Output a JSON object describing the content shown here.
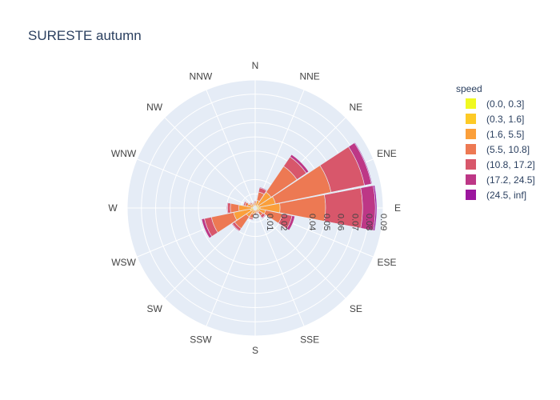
{
  "chart_data": {
    "type": "barpolar",
    "title": "SURESTE autumn",
    "legend_title": "speed",
    "legend_position": "top-right",
    "radial_range": [
      0,
      0.09
    ],
    "radial_ticks": [
      "0",
      "0.01",
      "0.02",
      "0.04",
      "0.05",
      "0.06",
      "0.07",
      "0.08",
      "0.09"
    ],
    "radial_tick_values": [
      0,
      0.01,
      0.02,
      0.04,
      0.05,
      0.06,
      0.07,
      0.08,
      0.09
    ],
    "directions": [
      "N",
      "NNE",
      "NE",
      "ENE",
      "E",
      "ESE",
      "SE",
      "SSE",
      "S",
      "SSW",
      "SW",
      "WSW",
      "W",
      "WNW",
      "NW",
      "NNW"
    ],
    "series": [
      {
        "name": "(0.0, 0.3]",
        "color": "#f0f921",
        "values": [
          0.0005,
          0.0005,
          0.0005,
          0.0005,
          0.0005,
          0.0005,
          0.0005,
          0.0005,
          0.0005,
          0.0005,
          0.0005,
          0.0005,
          0.0005,
          0.0005,
          0.0005,
          0.0005
        ]
      },
      {
        "name": "(0.3, 1.6]",
        "color": "#fdca26",
        "values": [
          0.001,
          0.001,
          0.002,
          0.002,
          0.003,
          0.002,
          0.001,
          0.001,
          0.001,
          0.001,
          0.001,
          0.003,
          0.002,
          0.001,
          0.001,
          0.001
        ]
      },
      {
        "name": "(1.6, 5.5]",
        "color": "#fb9f3a",
        "values": [
          0.002,
          0.004,
          0.011,
          0.012,
          0.014,
          0.005,
          0.002,
          0.001,
          0.002,
          0.003,
          0.006,
          0.012,
          0.009,
          0.004,
          0.002,
          0.001
        ]
      },
      {
        "name": "(5.5, 10.8]",
        "color": "#ed7953",
        "values": [
          0.001,
          0.006,
          0.022,
          0.04,
          0.032,
          0.012,
          0.003,
          0.001,
          0.001,
          0.003,
          0.01,
          0.016,
          0.006,
          0.002,
          0.001,
          0.001
        ]
      },
      {
        "name": "(10.8, 17.2]",
        "color": "#d8576b",
        "values": [
          0.0005,
          0.003,
          0.008,
          0.024,
          0.026,
          0.007,
          0.002,
          0.0005,
          0.0005,
          0.001,
          0.002,
          0.005,
          0.002,
          0.001,
          0.0005,
          0.0005
        ]
      },
      {
        "name": "(17.2, 24.5]",
        "color": "#bd3786",
        "values": [
          0,
          0.0005,
          0.002,
          0.005,
          0.009,
          0.002,
          0.0005,
          0,
          0,
          0,
          0.0005,
          0.002,
          0.0005,
          0,
          0,
          0
        ]
      },
      {
        "name": "(24.5, inf]",
        "color": "#9c179e",
        "values": [
          0,
          0,
          0,
          0.0005,
          0.001,
          0,
          0,
          0,
          0,
          0,
          0,
          0,
          0,
          0,
          0,
          0
        ]
      }
    ]
  }
}
